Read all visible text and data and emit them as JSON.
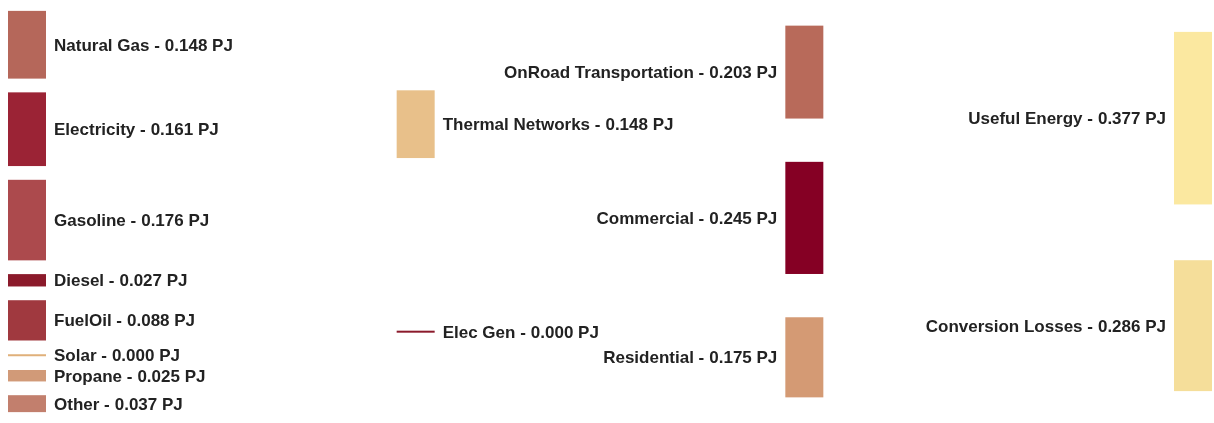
{
  "chart_data": [
    {
      "type": "other",
      "categories": [
        "Natural Gas -",
        "Electricity -",
        "Gasoline -",
        "Diesel -",
        "FuelOil -",
        "Solar -",
        "Propane -",
        "Other -"
      ],
      "values": [
        0.148,
        0.161,
        0.176,
        0.027,
        0.088,
        0.0,
        0.025,
        0.037
      ],
      "value_labels": [
        "0.148 PJ",
        "0.161 PJ",
        "0.176 PJ",
        "0.027 PJ",
        "0.088 PJ",
        "0.000 PJ",
        "0.025 PJ",
        "0.037 PJ"
      ],
      "colors": [
        "#b5675a",
        "#9b2335",
        "#ac4a4d",
        "#8b1a2b",
        "#a0393f",
        "#e0b07a",
        "#d19a78",
        "#c27f6d"
      ]
    },
    {
      "type": "other",
      "categories": [
        "Thermal Networks -",
        "Elec Gen -"
      ],
      "values": [
        0.148,
        0.0
      ],
      "value_labels": [
        "0.148 PJ",
        "0.000 PJ"
      ],
      "colors": [
        "#e8c08a",
        "#8b1a2b"
      ]
    },
    {
      "type": "other",
      "categories": [
        "OnRoad Transportation -",
        "Commercial -",
        "Residential -"
      ],
      "values": [
        0.203,
        0.245,
        0.175
      ],
      "value_labels": [
        "0.203 PJ",
        "0.245 PJ",
        "0.175 PJ"
      ],
      "colors": [
        "#b86a5a",
        "#850024",
        "#d49a74"
      ]
    },
    {
      "type": "other",
      "categories": [
        "Useful Energy -",
        "Conversion Losses -"
      ],
      "values": [
        0.377,
        0.286
      ],
      "value_labels": [
        "0.377 PJ",
        "0.286 PJ"
      ],
      "colors": [
        "#fbe8a0",
        "#f5de9a"
      ]
    }
  ]
}
